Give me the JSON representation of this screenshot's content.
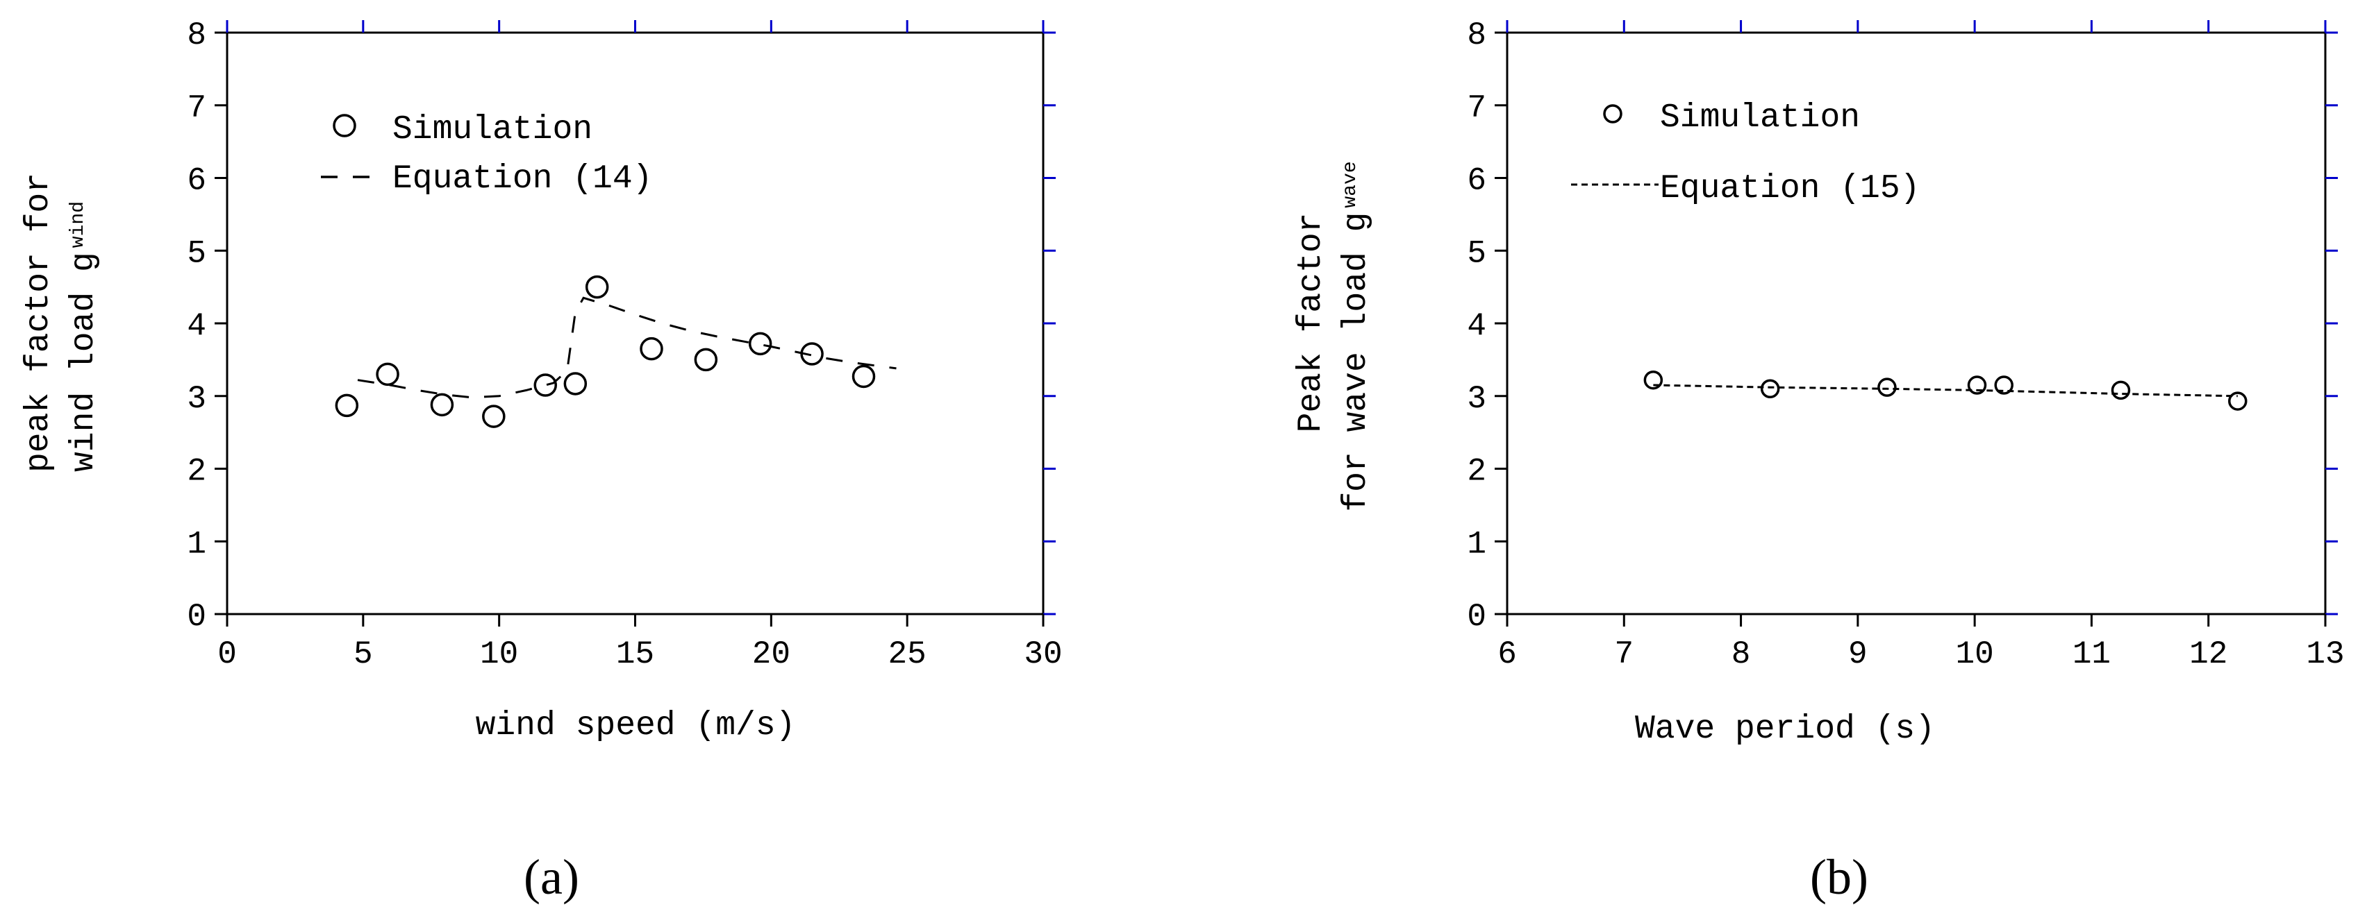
{
  "chart_data": [
    {
      "type": "scatter",
      "panel_label": "(a)",
      "xlabel": "wind speed (m/s)",
      "ylabel_lines": [
        "peak factor for",
        "wind load g"
      ],
      "ylabel_subscript": "wind",
      "xlim": [
        0,
        30
      ],
      "ylim": [
        0,
        8
      ],
      "xticks": [
        0,
        5,
        10,
        15,
        20,
        25,
        30
      ],
      "yticks": [
        0,
        1,
        2,
        3,
        4,
        5,
        6,
        7,
        8
      ],
      "legend_position": "top-left",
      "series": [
        {
          "name": "Simulation",
          "kind": "markers",
          "x": [
            4.4,
            5.9,
            7.9,
            9.8,
            11.7,
            12.8,
            13.6,
            15.6,
            17.6,
            19.6,
            21.5,
            23.4
          ],
          "y": [
            2.87,
            3.3,
            2.88,
            2.72,
            3.15,
            3.17,
            4.5,
            3.65,
            3.5,
            3.72,
            3.58,
            3.27
          ]
        },
        {
          "name": "Equation (14)",
          "kind": "dashed-line",
          "x": [
            4.8,
            6,
            7,
            8,
            9,
            10,
            11,
            12,
            12.5,
            12.8,
            13.1,
            14,
            15,
            16,
            17,
            18,
            19,
            20,
            21,
            22,
            23,
            24,
            24.6
          ],
          "y": [
            3.22,
            3.15,
            3.08,
            3.02,
            2.98,
            3.0,
            3.08,
            3.18,
            3.35,
            4.15,
            4.35,
            4.25,
            4.12,
            4.0,
            3.9,
            3.82,
            3.75,
            3.68,
            3.6,
            3.52,
            3.46,
            3.41,
            3.38
          ]
        }
      ]
    },
    {
      "type": "scatter",
      "panel_label": "(b)",
      "xlabel": "Wave period (s)",
      "ylabel_lines": [
        "Peak factor",
        "for wave load g"
      ],
      "ylabel_subscript": "wave",
      "xlim": [
        6,
        13
      ],
      "ylim": [
        0,
        8
      ],
      "xticks": [
        6,
        7,
        8,
        9,
        10,
        11,
        12,
        13
      ],
      "yticks": [
        0,
        1,
        2,
        3,
        4,
        5,
        6,
        7,
        8
      ],
      "legend_position": "top-left",
      "series": [
        {
          "name": "Simulation",
          "kind": "markers",
          "x": [
            7.25,
            8.25,
            9.25,
            10.02,
            10.25,
            11.25,
            12.25
          ],
          "y": [
            3.22,
            3.1,
            3.12,
            3.15,
            3.15,
            3.08,
            2.93
          ]
        },
        {
          "name": "Equation (15)",
          "kind": "dotted-line",
          "x": [
            7.25,
            8.25,
            9.25,
            10.02,
            10.25,
            11.25,
            12.25
          ],
          "y": [
            3.15,
            3.12,
            3.1,
            3.08,
            3.07,
            3.03,
            3.0
          ]
        }
      ]
    }
  ],
  "colors": {
    "axis": "#000000",
    "right_ticks": "#0000cc",
    "marker": "#000000"
  }
}
